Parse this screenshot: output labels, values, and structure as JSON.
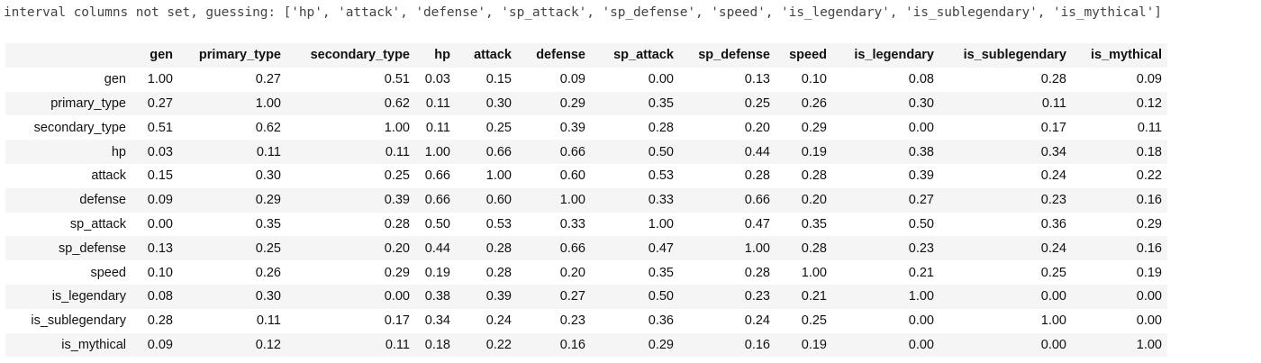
{
  "output": {
    "message": "interval columns not set, guessing: ['hp', 'attack', 'defense', 'sp_attack', 'sp_defense', 'speed', 'is_legendary', 'is_sublegendary', 'is_mythical']"
  },
  "table": {
    "corner": "",
    "columns": [
      "gen",
      "primary_type",
      "secondary_type",
      "hp",
      "attack",
      "defense",
      "sp_attack",
      "sp_defense",
      "speed",
      "is_legendary",
      "is_sublegendary",
      "is_mythical"
    ],
    "rows": [
      {
        "label": "gen",
        "values": [
          "1.00",
          "0.27",
          "0.51",
          "0.03",
          "0.15",
          "0.09",
          "0.00",
          "0.13",
          "0.10",
          "0.08",
          "0.28",
          "0.09"
        ]
      },
      {
        "label": "primary_type",
        "values": [
          "0.27",
          "1.00",
          "0.62",
          "0.11",
          "0.30",
          "0.29",
          "0.35",
          "0.25",
          "0.26",
          "0.30",
          "0.11",
          "0.12"
        ]
      },
      {
        "label": "secondary_type",
        "values": [
          "0.51",
          "0.62",
          "1.00",
          "0.11",
          "0.25",
          "0.39",
          "0.28",
          "0.20",
          "0.29",
          "0.00",
          "0.17",
          "0.11"
        ]
      },
      {
        "label": "hp",
        "values": [
          "0.03",
          "0.11",
          "0.11",
          "1.00",
          "0.66",
          "0.66",
          "0.50",
          "0.44",
          "0.19",
          "0.38",
          "0.34",
          "0.18"
        ]
      },
      {
        "label": "attack",
        "values": [
          "0.15",
          "0.30",
          "0.25",
          "0.66",
          "1.00",
          "0.60",
          "0.53",
          "0.28",
          "0.28",
          "0.39",
          "0.24",
          "0.22"
        ]
      },
      {
        "label": "defense",
        "values": [
          "0.09",
          "0.29",
          "0.39",
          "0.66",
          "0.60",
          "1.00",
          "0.33",
          "0.66",
          "0.20",
          "0.27",
          "0.23",
          "0.16"
        ]
      },
      {
        "label": "sp_attack",
        "values": [
          "0.00",
          "0.35",
          "0.28",
          "0.50",
          "0.53",
          "0.33",
          "1.00",
          "0.47",
          "0.35",
          "0.50",
          "0.36",
          "0.29"
        ]
      },
      {
        "label": "sp_defense",
        "values": [
          "0.13",
          "0.25",
          "0.20",
          "0.44",
          "0.28",
          "0.66",
          "0.47",
          "1.00",
          "0.28",
          "0.23",
          "0.24",
          "0.16"
        ]
      },
      {
        "label": "speed",
        "values": [
          "0.10",
          "0.26",
          "0.29",
          "0.19",
          "0.28",
          "0.20",
          "0.35",
          "0.28",
          "1.00",
          "0.21",
          "0.25",
          "0.19"
        ]
      },
      {
        "label": "is_legendary",
        "values": [
          "0.08",
          "0.30",
          "0.00",
          "0.38",
          "0.39",
          "0.27",
          "0.50",
          "0.23",
          "0.21",
          "1.00",
          "0.00",
          "0.00"
        ]
      },
      {
        "label": "is_sublegendary",
        "values": [
          "0.28",
          "0.11",
          "0.17",
          "0.34",
          "0.24",
          "0.23",
          "0.36",
          "0.24",
          "0.25",
          "0.00",
          "1.00",
          "0.00"
        ]
      },
      {
        "label": "is_mythical",
        "values": [
          "0.09",
          "0.12",
          "0.11",
          "0.18",
          "0.22",
          "0.16",
          "0.29",
          "0.16",
          "0.19",
          "0.00",
          "0.00",
          "1.00"
        ]
      }
    ]
  },
  "colors": {
    "header_bg": "#f5f5f5",
    "stripe_bg": "#f5f5f5",
    "text": "#111111",
    "stdout_text": "#444444"
  }
}
